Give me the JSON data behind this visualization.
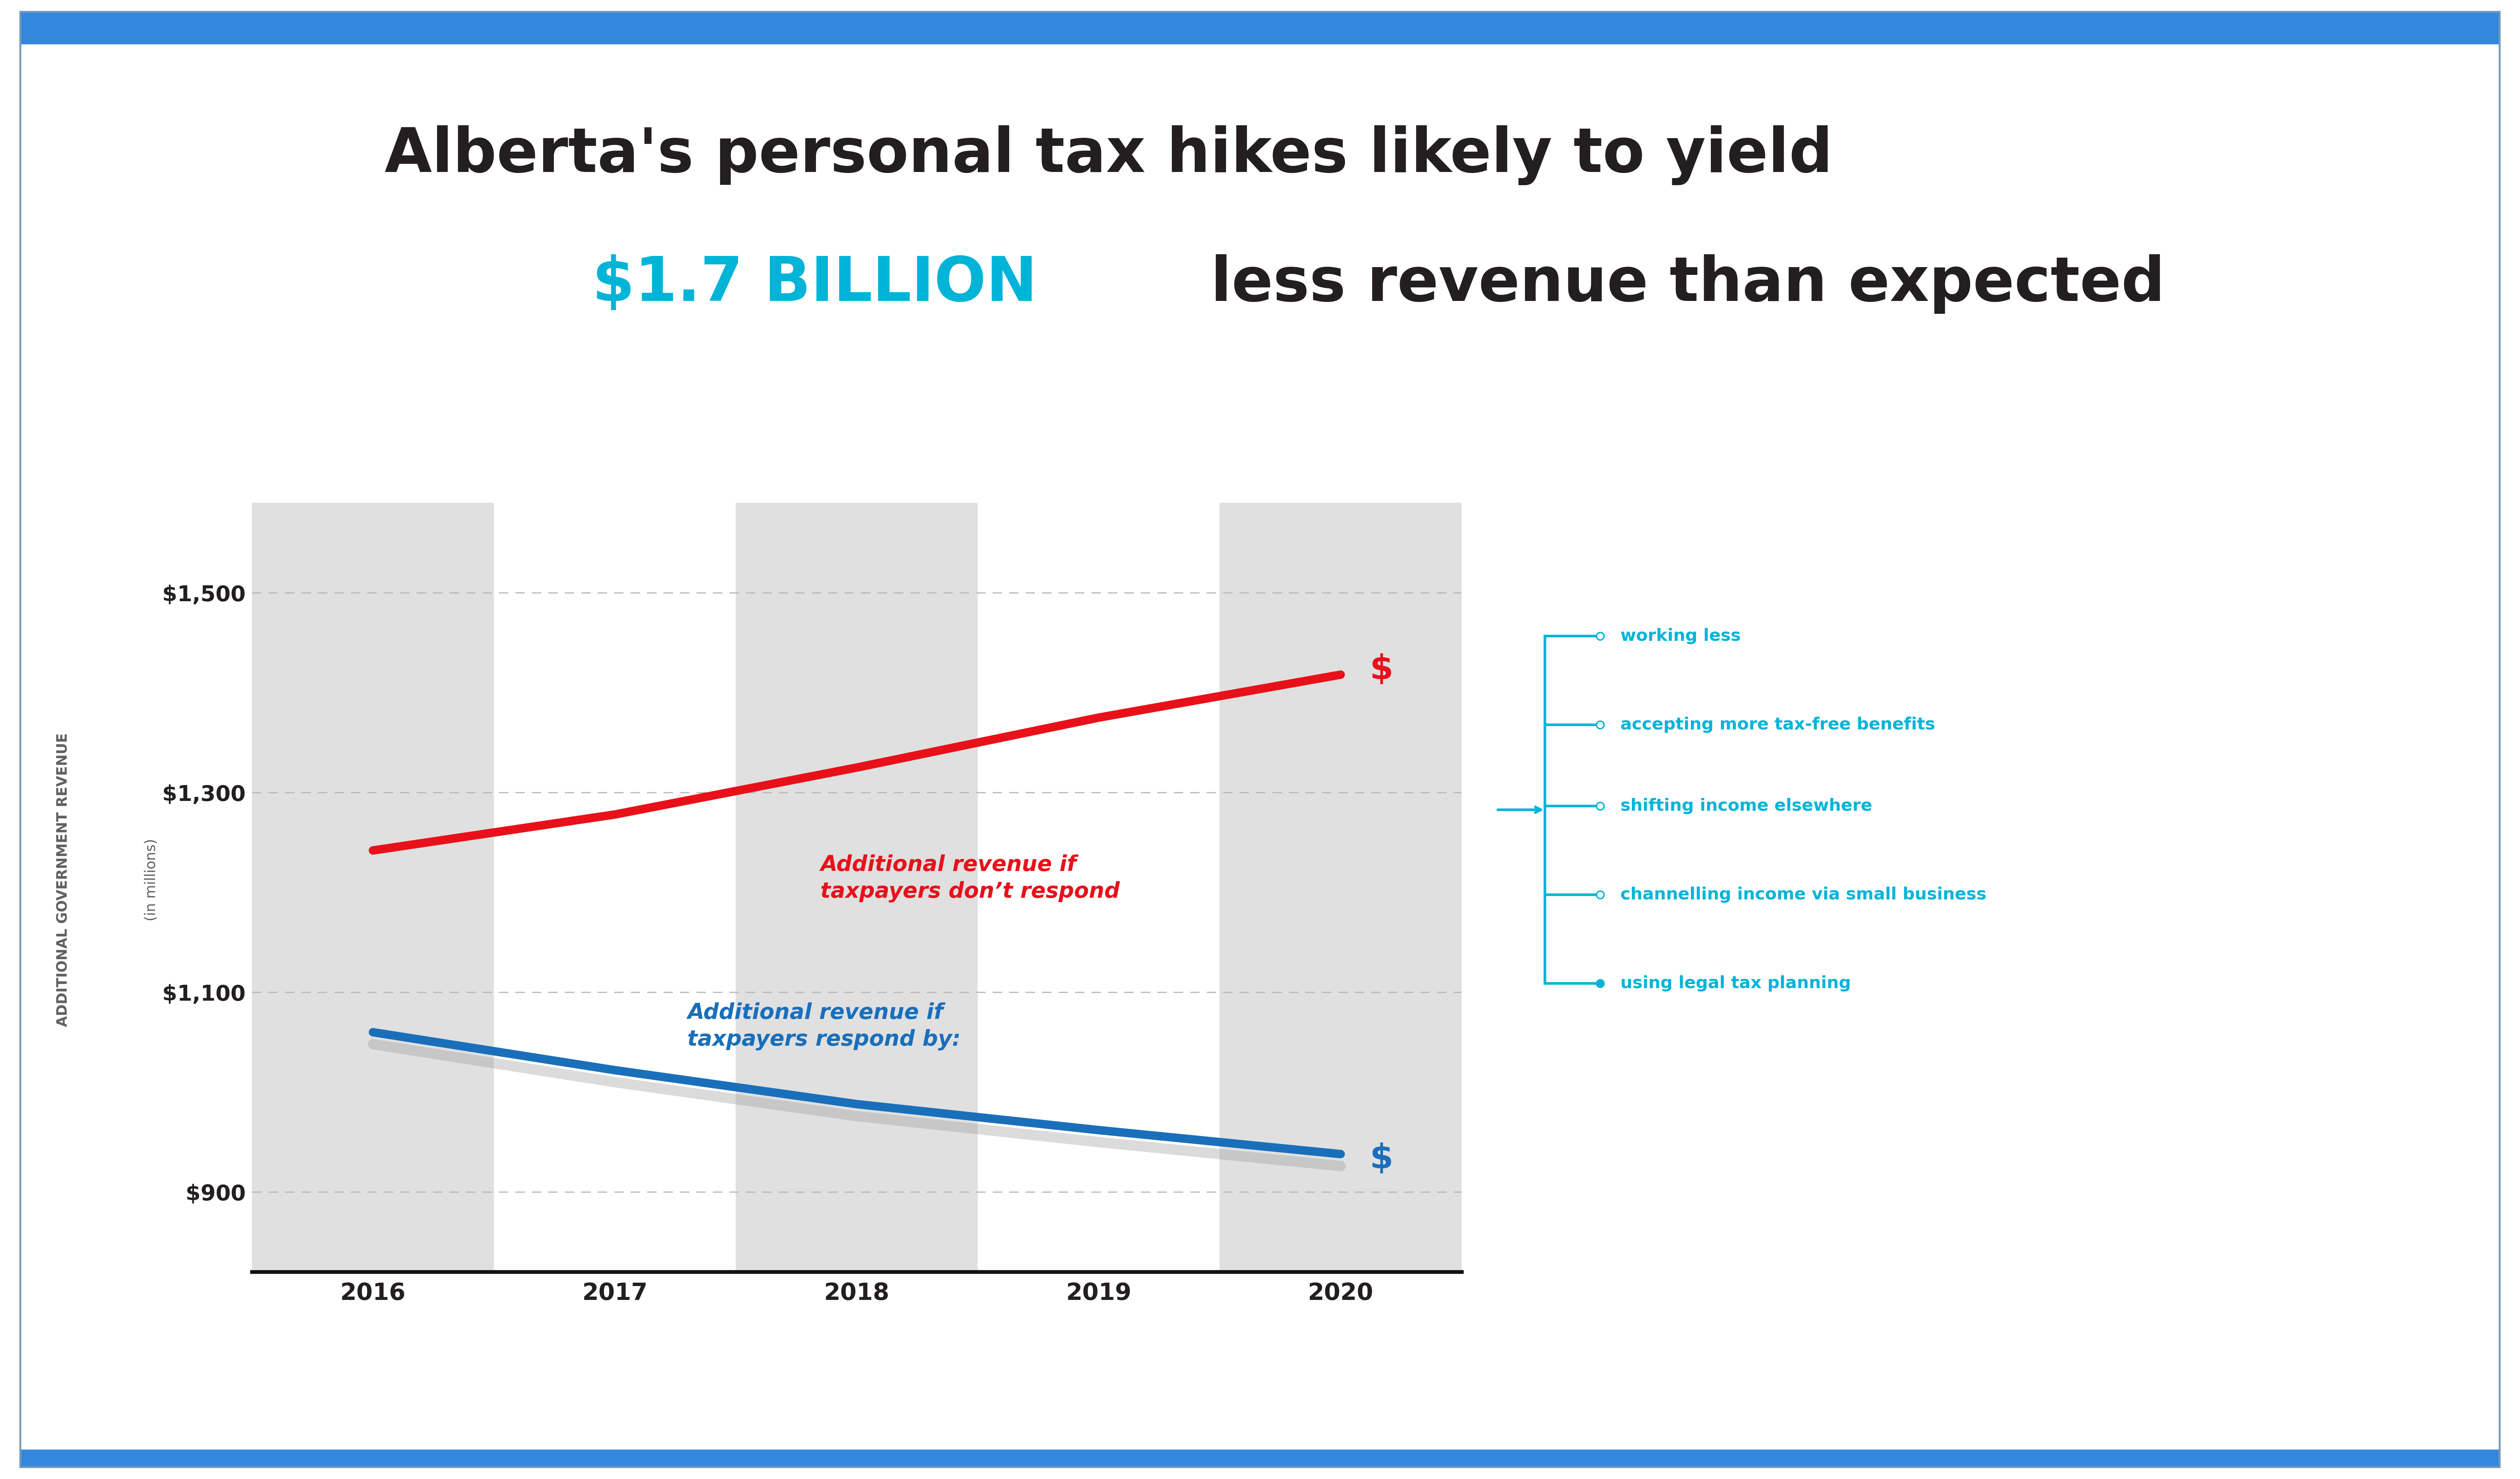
{
  "title_line1": "Alberta's personal tax hikes likely to yield",
  "title_cyan": "$1.7 BILLION",
  "title_line2_rest": " less revenue than expected",
  "years": [
    2016,
    2017,
    2018,
    2019,
    2020
  ],
  "red_line": [
    1242,
    1278,
    1325,
    1375,
    1418
  ],
  "blue_line": [
    1060,
    1022,
    988,
    962,
    938
  ],
  "ylim": [
    820,
    1590
  ],
  "yticks": [
    900,
    1100,
    1300,
    1500
  ],
  "ytick_labels": [
    "$900",
    "$1,100",
    "$1,300",
    "$1,500"
  ],
  "ylabel_top": "ADDITIONAL GOVERNMENT REVENUE",
  "ylabel_bot": "(in millions)",
  "red_color": "#e8111a",
  "blue_color": "#1a6fba",
  "cyan_color": "#00b4d8",
  "dark_color": "#231f20",
  "gray_label_color": "#606060",
  "plot_bg": "#e0e0e0",
  "white_stripe": "#ffffff",
  "grid_color": "#b8b8b8",
  "red_label_line1": "Additional revenue if",
  "red_label_line2": "taxpayers don’t respond",
  "blue_label_line1": "Additional revenue if",
  "blue_label_line2": "taxpayers respond by:",
  "bullets": [
    "working less",
    "accepting more tax-free benefits",
    "shifting income elsewhere",
    "channelling income via small business",
    "using legal tax planning"
  ],
  "border_color": "#6699cc",
  "logo_blue": "#1a6fba"
}
